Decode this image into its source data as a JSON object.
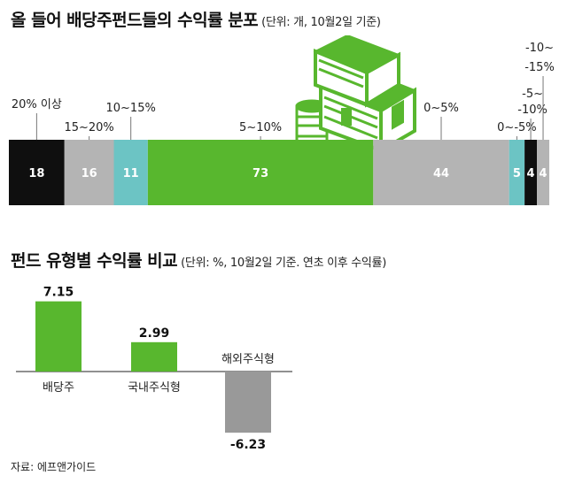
{
  "source": "자료: 에프앤가이드",
  "chart_data": [
    {
      "type": "bar",
      "orientation": "horizontal-stacked",
      "title": "올 들어 배당주펀드들의 수익률 분포",
      "subtitle": "(단위: 개, 10월2일 기준)",
      "categories": [
        "20% 이상",
        "15~20%",
        "10~15%",
        "5~10%",
        "0~5%",
        "0~-5%",
        "-5~-10%",
        "-10~-15%"
      ],
      "values": [
        18,
        16,
        11,
        73,
        44,
        5,
        4,
        4
      ],
      "colors": [
        "#0f0f0f",
        "#b4b4b4",
        "#6cc4c4",
        "#58b72e",
        "#b4b4b4",
        "#6cc4c4",
        "#0f0f0f",
        "#b4b4b4"
      ]
    },
    {
      "type": "bar",
      "title": "펀드 유형별 수익률 비교",
      "subtitle": "(단위: %, 10월2일 기준. 연초 이후 수익률)",
      "categories": [
        "배당주",
        "국내주식형",
        "해외주식형"
      ],
      "values": [
        7.15,
        2.99,
        -6.23
      ],
      "value_labels": [
        "7.15",
        "2.99",
        "-6.23"
      ],
      "colors": [
        "#58b72e",
        "#58b72e",
        "#999999"
      ],
      "ylim": [
        -7,
        8
      ]
    }
  ],
  "colors": {
    "accent": "#58b72e",
    "gray": "#b4b4b4",
    "teal": "#6cc4c4",
    "black": "#0f0f0f"
  }
}
